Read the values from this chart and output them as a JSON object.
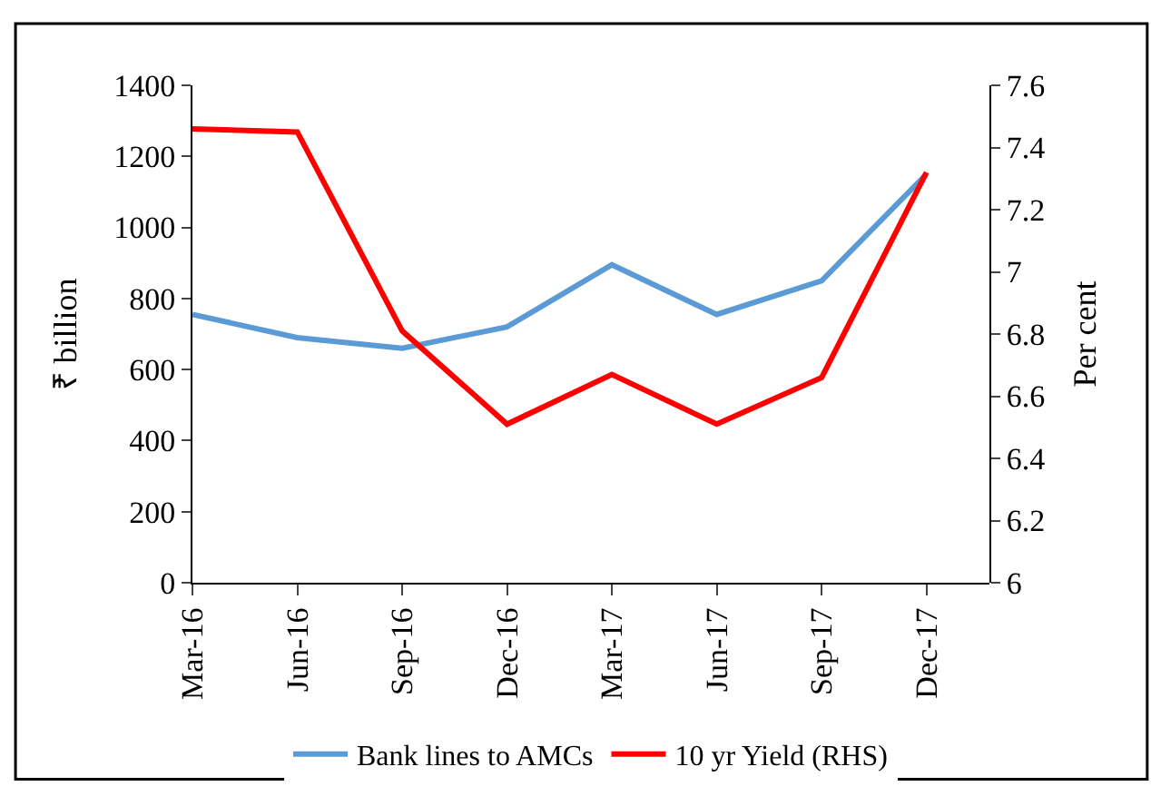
{
  "chart_data": {
    "type": "line",
    "categories": [
      "Mar-16",
      "Jun-16",
      "Sep-16",
      "Dec-16",
      "Mar-17",
      "Jun-17",
      "Sep-17",
      "Dec-17"
    ],
    "series": [
      {
        "name": "Bank lines to AMCs",
        "color": "#5b9bd5",
        "values": [
          755,
          690,
          660,
          720,
          895,
          755,
          850,
          1150
        ]
      },
      {
        "name": "10 yr Yield (RHS)",
        "color": "#ff0000",
        "axis": "y2",
        "values": [
          7.46,
          7.45,
          6.81,
          6.51,
          6.67,
          6.51,
          6.66,
          7.32
        ]
      }
    ],
    "ylabel": "₹ billion",
    "y2label": "Per cent",
    "ylim": [
      0,
      1400
    ],
    "yticks": [
      0,
      200,
      400,
      600,
      800,
      1000,
      1200,
      1400
    ],
    "y2lim": [
      6,
      7.6
    ],
    "y2ticks": [
      6,
      6.2,
      6.4,
      6.6,
      6.8,
      7,
      7.2,
      7.4,
      7.6
    ],
    "legend": "bottom",
    "marker": "none",
    "line_style": "solid"
  }
}
